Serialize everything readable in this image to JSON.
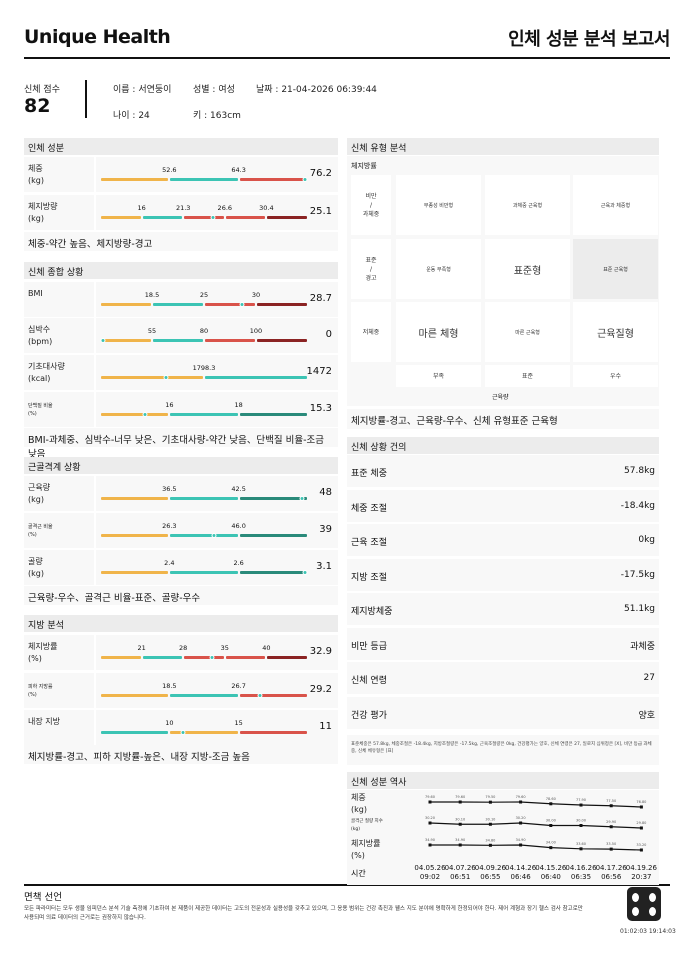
{
  "header": {
    "brand": "Unique Health",
    "title": "인체 성분 분석 보고서"
  },
  "profile": {
    "score_label": "신체 점수",
    "score": "82",
    "name": "이름 : 서연둥이",
    "gender": "성별 : 여성",
    "date": "날짜 : 21-04-2026 06:39:44",
    "age": "나이 : 24",
    "height": "키 : 163cm"
  },
  "colors": {
    "orange": "#f0b44a",
    "teal": "#3cc4b4",
    "red": "#d9534a",
    "darkred": "#8b2323",
    "darkteal": "#2a8a7a"
  },
  "sections": [
    {
      "title": "인체 성분",
      "rows": [
        {
          "label": "체중\n(kg)",
          "thresholds": [
            52.6,
            64.3
          ],
          "colors": [
            "orange",
            "teal",
            "red"
          ],
          "value": 76.2
        },
        {
          "label": "체지방량\n(kg)",
          "thresholds": [
            16,
            21.3,
            26.6,
            30.4
          ],
          "colors": [
            "orange",
            "teal",
            "red",
            "red",
            "darkred"
          ],
          "value": 25.1
        }
      ],
      "summary": "체중-약간 높음、체지방량-경고"
    },
    {
      "title": "신체 종합 상황",
      "rows": [
        {
          "label": "BMI",
          "thresholds": [
            18.5,
            25,
            30
          ],
          "colors": [
            "orange",
            "teal",
            "red",
            "darkred"
          ],
          "value": 28.7
        },
        {
          "label": "심박수\n(bpm)",
          "thresholds": [
            55,
            80,
            100
          ],
          "colors": [
            "orange",
            "teal",
            "red",
            "darkred"
          ],
          "value": 0
        },
        {
          "label": "기초대사량\n(kcal)",
          "thresholds": [
            1798.3
          ],
          "colors": [
            "orange",
            "teal"
          ],
          "value": 1472
        },
        {
          "label": "단백질 비율\n(%)",
          "tiny": true,
          "thresholds": [
            16,
            18
          ],
          "colors": [
            "orange",
            "teal",
            "darkteal"
          ],
          "value": 15.3
        }
      ],
      "summary": "BMI-과체중、심박수-너무 낮은、기초대사량-약간 낮음、단백질 비율-조금 낮음"
    },
    {
      "title": "근골격계 상황",
      "rows": [
        {
          "label": "근육량\n(kg)",
          "thresholds": [
            36.5,
            42.5
          ],
          "colors": [
            "orange",
            "teal",
            "darkteal"
          ],
          "value": 48
        },
        {
          "label": "골격근 비율\n(%)",
          "tiny": true,
          "thresholds": [
            26.3,
            46.0
          ],
          "ticklabels": [
            "26.3",
            "46.0"
          ],
          "colors": [
            "orange",
            "teal",
            "darkteal"
          ],
          "value": 39
        },
        {
          "label": "골량\n(kg)",
          "thresholds": [
            2.4,
            2.6
          ],
          "colors": [
            "orange",
            "teal",
            "darkteal"
          ],
          "value": 3.1
        }
      ],
      "summary": "근육량-우수、골격근 비율-표준、골량-우수"
    },
    {
      "title": "지방 분석",
      "rows": [
        {
          "label": "체지방률\n(%)",
          "thresholds": [
            21,
            28,
            35,
            40
          ],
          "colors": [
            "orange",
            "teal",
            "red",
            "red",
            "darkred"
          ],
          "value": 32.9
        },
        {
          "label": "피하 지방률\n(%)",
          "tiny": true,
          "thresholds": [
            18.5,
            26.7
          ],
          "colors": [
            "orange",
            "teal",
            "red"
          ],
          "value": 29.2
        },
        {
          "label": "내장 지방",
          "thresholds": [
            10,
            15
          ],
          "colors": [
            "teal",
            "orange",
            "red"
          ],
          "value": 11
        }
      ],
      "summary": "체지방률-경고、피하 지방률-높은、내장 지방-조금 높음"
    }
  ],
  "body_type": {
    "title": "신체 유형 분석",
    "y_axis": "체지방률",
    "x_axis": "근육량",
    "row_labels": [
      "비만\n/\n과체중",
      "표준\n/\n경고",
      "저체중"
    ],
    "col_labels": [
      "부족",
      "표준",
      "우수"
    ],
    "cells": [
      [
        "부종성 비만형",
        "과체중 근육형",
        "근육과 체중형"
      ],
      [
        "운동 부족형",
        "표준형",
        "표준 근육형"
      ],
      [
        "마른 체형",
        "마른 근육형",
        "근육질형"
      ]
    ],
    "big": [
      [
        false,
        false,
        false
      ],
      [
        false,
        true,
        false
      ],
      [
        true,
        false,
        true
      ]
    ],
    "selected": [
      1,
      2
    ],
    "summary": "체지방률-경고、근육량-우수、신체 유형표준 근육형"
  },
  "advice": {
    "title": "신체 상황 건의",
    "rows": [
      {
        "k": "표준 체중",
        "v": "57.8kg"
      },
      {
        "k": "체중 조절",
        "v": "-18.4kg"
      },
      {
        "k": "근육 조절",
        "v": "0kg"
      },
      {
        "k": "지방 조절",
        "v": "-17.5kg"
      },
      {
        "k": "제지방체중",
        "v": "51.1kg"
      },
      {
        "k": "비만 등급",
        "v": "과체중"
      },
      {
        "k": "신체 연령",
        "v": "27"
      },
      {
        "k": "건강 평가",
        "v": "양호"
      }
    ],
    "note": "표준체중은 57.8kg, 체중조절은 -18.4kg, 지방조절량은 -17.5kg, 근육조절량은 0kg, 건강평가는 양호, 신체 연령은 27, 일로지 심위정은 [X], 비만 등급 과체중, 신체 체유형은 [표]"
  },
  "history": {
    "title": "신체 성분 역사",
    "series": [
      {
        "label": "체중\n(kg)",
        "values": [
          79.6,
          79.6,
          79.5,
          79.6,
          78.6,
          77.9,
          77.5,
          76.8
        ]
      },
      {
        "label": "골격근 질량 지수\n(kg)",
        "tiny": true,
        "values": [
          30.2,
          30.1,
          30.1,
          30.2,
          30.0,
          30.0,
          29.9,
          29.8
        ]
      },
      {
        "label": "체지방률\n(%)",
        "values": [
          34.9,
          34.9,
          34.8,
          34.9,
          34.0,
          33.6,
          33.5,
          33.2
        ]
      }
    ],
    "time_label": "시간",
    "times": [
      "04.05.26\n09:02",
      "04.07.26\n06:51",
      "04.09.26\n06:55",
      "04.14.26\n06:46",
      "04.15.26\n06:40",
      "04.16.26\n06:35",
      "04.17.26\n06:56",
      "04.19.26\n20:37"
    ]
  },
  "footer": {
    "title": "면책 선언",
    "text": "모든 파라미터는 모두 생물 임피던스 분석 기술 측정에 기초하여 본 제품이 제공한 데이터는 고도의 전문성과 실용성을 갖추고 있으며, 그 응용 범위는 건강 촉진과 웰스 지도 분야에 명확하게 한정되어야 한다. 제어 계형과 장기 헬스 검사 참고로만 사용되며 의료 데이터의 근거로는 권장하지 않습니다.",
    "code": "01:02:03 19:14:03"
  }
}
